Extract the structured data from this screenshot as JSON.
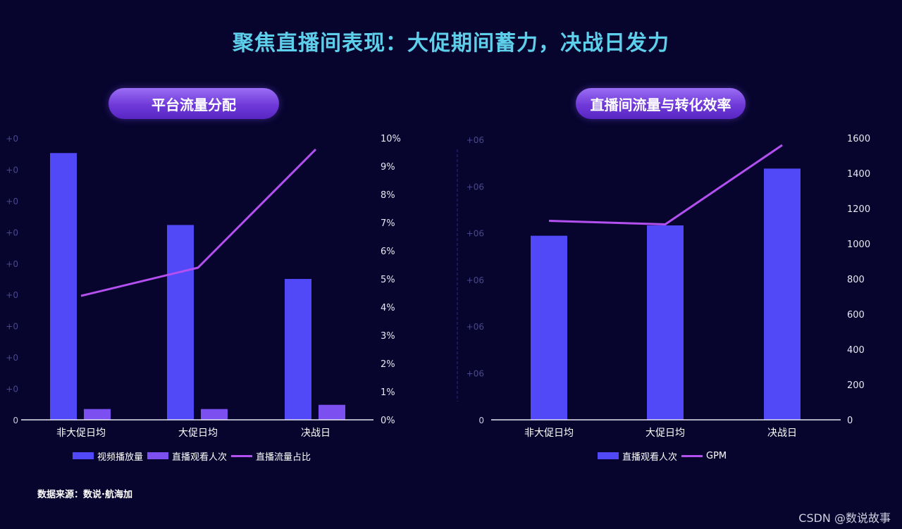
{
  "title": "聚焦直播间表现：大促期间蓄力，决战日发力",
  "source": "数据来源：数说·航海加",
  "watermark": "CSDN @数说故事",
  "colors": {
    "bar_primary": "#5148f8",
    "bar_secondary": "#7c4ff0",
    "line": "#b44ff0",
    "title": "#5ecfea",
    "background": "#07052e"
  },
  "chart_data": [
    {
      "type": "bar",
      "title": "平台流量分配",
      "categories": [
        "非大促日均",
        "大促日均",
        "决战日"
      ],
      "series": [
        {
          "name": "视频播放量",
          "axis": "left",
          "type": "bar",
          "values": [
            4.45,
            3.25,
            2.35
          ]
        },
        {
          "name": "直播观看人次",
          "axis": "left",
          "type": "bar",
          "values": [
            0.18,
            0.18,
            0.25
          ]
        },
        {
          "name": "直播流量占比",
          "axis": "right",
          "type": "line",
          "values": [
            4.4,
            5.4,
            9.6
          ]
        }
      ],
      "y_left": {
        "ticks": [
          "+0",
          "+0",
          "+0",
          "+0",
          "+0",
          "+0",
          "+0",
          "+0",
          "+0",
          "0"
        ],
        "ylim": [
          0,
          4.7
        ]
      },
      "y_right": {
        "ticks": [
          "10%",
          "9%",
          "8%",
          "7%",
          "6%",
          "5%",
          "4%",
          "3%",
          "2%",
          "1%",
          "0%"
        ],
        "ylim": [
          0,
          10
        ]
      },
      "legend": "bottom"
    },
    {
      "type": "bar",
      "title": "直播间流量与转化效率",
      "categories": [
        "非大促日均",
        "大促日均",
        "决战日"
      ],
      "series": [
        {
          "name": "直播观看人次",
          "axis": "left",
          "type": "bar",
          "values": [
            3.92,
            4.14,
            5.35
          ]
        },
        {
          "name": "GPM",
          "axis": "right",
          "type": "line",
          "values": [
            1130,
            1110,
            1560
          ]
        }
      ],
      "y_left": {
        "ticks": [
          "+06",
          "+06",
          "+06",
          "+06",
          "+06",
          "+06",
          "0"
        ],
        "ylim": [
          0,
          6
        ]
      },
      "y_right": {
        "ticks": [
          "1600",
          "1400",
          "1200",
          "1000",
          "800",
          "600",
          "400",
          "200",
          "0"
        ],
        "ylim": [
          0,
          1600
        ]
      },
      "legend": "bottom"
    }
  ]
}
